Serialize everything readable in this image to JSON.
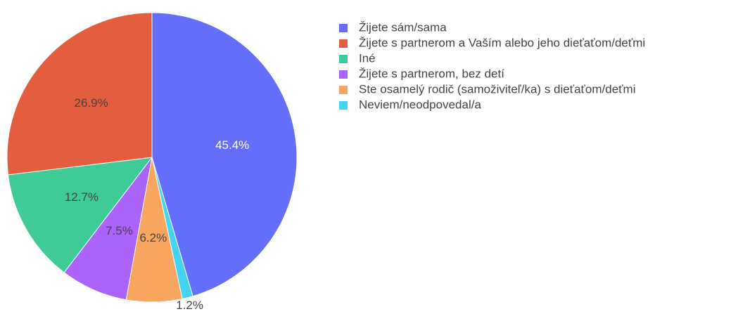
{
  "chart_data": {
    "type": "pie",
    "categories": [
      "Žijete sám/sama",
      "Žijete s partnerom a Vaším alebo jeho dieťaťom/deťmi",
      "Iné",
      "Žijete s partnerom, bez detí",
      "Ste osamelý rodič (samoživiteľ/ka) s dieťaťom/deťmi",
      "Neviem/neodpovedal/a"
    ],
    "values": [
      45.4,
      26.9,
      12.7,
      7.5,
      6.2,
      1.2
    ],
    "value_labels": [
      "45.4%",
      "26.9%",
      "12.7%",
      "7.5%",
      "6.2%",
      "1.2%"
    ],
    "colors": [
      "#636efa",
      "#e45d3f",
      "#3ecb98",
      "#ab63fa",
      "#f8a55f",
      "#44d3f2"
    ]
  }
}
